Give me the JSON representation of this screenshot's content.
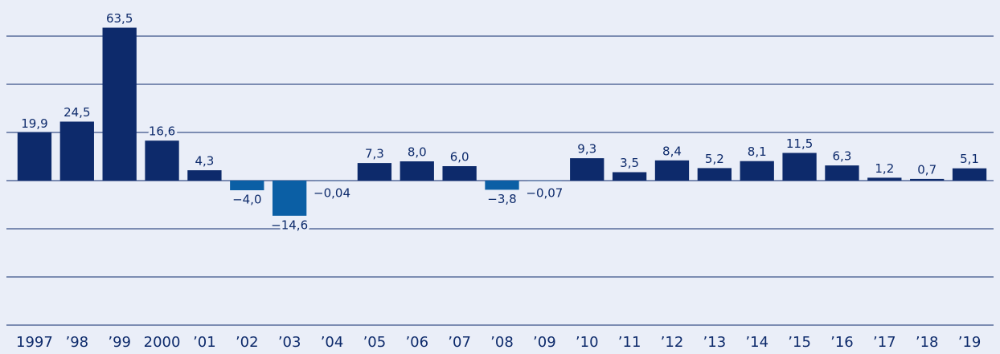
{
  "chart_data": {
    "type": "bar",
    "categories": [
      "1997",
      "’98",
      "’99",
      "2000",
      "’01",
      "’02",
      "’03",
      "’04",
      "’05",
      "’06",
      "’07",
      "’08",
      "’09",
      "’10",
      "’11",
      "’12",
      "’13",
      "’14",
      "’15",
      "’16",
      "’17",
      "’18",
      "’19"
    ],
    "values": [
      19.9,
      24.5,
      63.5,
      16.6,
      4.3,
      -4.0,
      -14.6,
      -0.04,
      7.3,
      8.0,
      6.0,
      -3.8,
      -0.07,
      9.3,
      3.5,
      8.4,
      5.2,
      8.1,
      11.5,
      6.3,
      1.2,
      0.7,
      5.1
    ],
    "value_labels": [
      "19,9",
      "24,5",
      "63,5",
      "16,6",
      "4,3",
      "−4,0",
      "−14,6",
      "−0,04",
      "7,3",
      "8,0",
      "6,0",
      "−3,8",
      "−0,07",
      "9,3",
      "3,5",
      "8,4",
      "5,2",
      "8,1",
      "11,5",
      "6,3",
      "1,2",
      "0,7",
      "5,1"
    ],
    "color": "#0d2a6b",
    "negative_color": "#0b5fa5",
    "ylim": [
      -60,
      75
    ],
    "gridlines": [
      -60,
      -40,
      -20,
      0,
      20,
      40,
      60
    ]
  }
}
